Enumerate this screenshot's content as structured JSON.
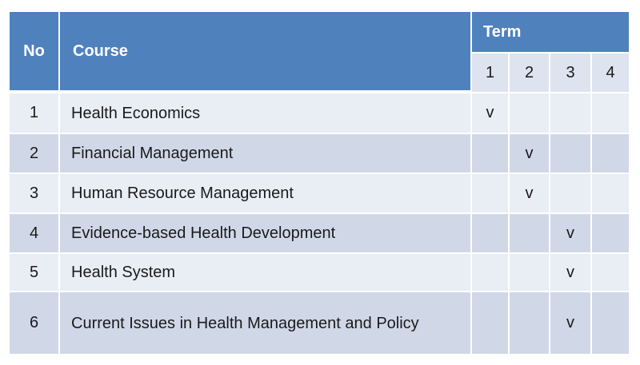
{
  "header": {
    "no": "No",
    "course": "Course",
    "term": "Term",
    "terms": [
      1,
      2,
      3,
      4
    ]
  },
  "rows": [
    {
      "no": 1,
      "course": "Health Economics",
      "marks": [
        "v",
        null,
        null,
        null
      ]
    },
    {
      "no": 2,
      "course": "Financial Management",
      "marks": [
        null,
        "v",
        null,
        null
      ]
    },
    {
      "no": 3,
      "course": "Human Resource Management",
      "marks": [
        null,
        "v",
        null,
        null
      ]
    },
    {
      "no": 4,
      "course": "Evidence-based Health Development",
      "marks": [
        null,
        null,
        "v",
        null
      ]
    },
    {
      "no": 5,
      "course": "Health System",
      "marks": [
        null,
        null,
        "v",
        null
      ]
    },
    {
      "no": 6,
      "course": "Current Issues in Health Management and Policy",
      "marks": [
        null,
        null,
        "v",
        null
      ]
    }
  ]
}
